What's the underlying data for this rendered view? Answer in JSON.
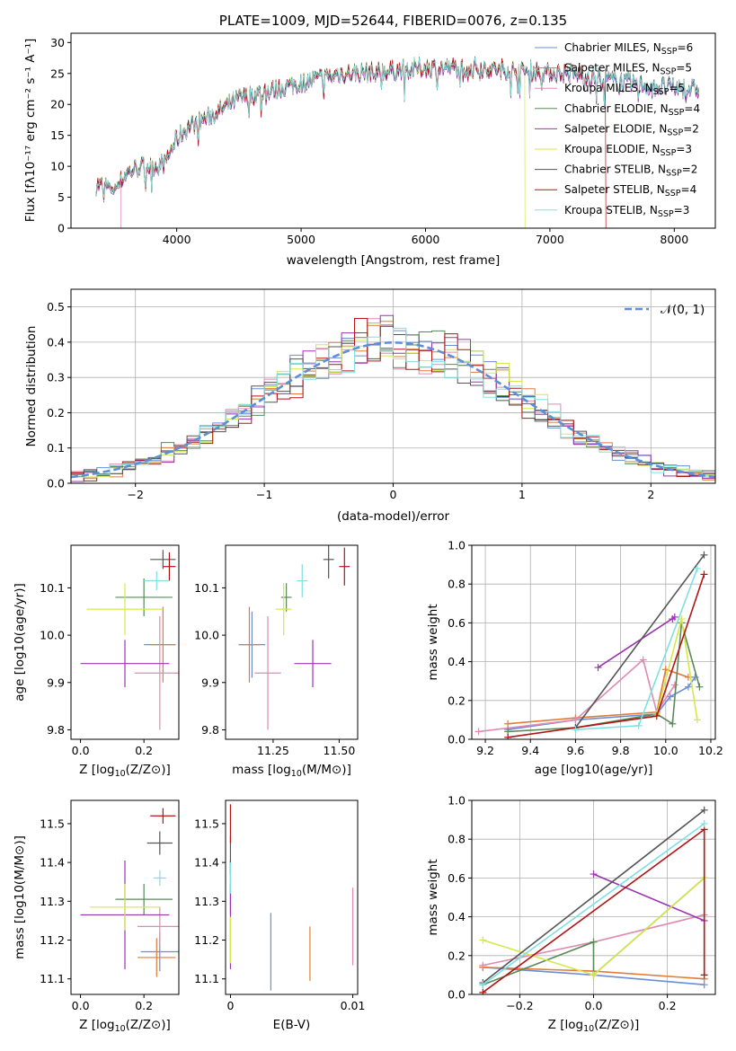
{
  "colors": [
    "#6a8dd6",
    "#e07b39",
    "#e08ab0",
    "#5a8a5a",
    "#9b34b0",
    "#d5e84a",
    "#555555",
    "#b21414",
    "#7fe0e0"
  ],
  "chart_data": [
    {
      "id": "spectrum",
      "type": "line",
      "title": "PLATE=1009, MJD=52644, FIBERID=0076, z=0.135",
      "xlabel": "wavelength [Angstrom, rest frame]",
      "ylabel": "Flux [fλ10⁻¹⁷ erg cm⁻² s⁻¹ A⁻¹]",
      "xlim": [
        3150,
        8330
      ],
      "ylim": [
        0,
        31.5
      ],
      "xticks": [
        4000,
        5000,
        6000,
        7000,
        8000
      ],
      "yticks": [
        0,
        5,
        10,
        15,
        20,
        25,
        30
      ],
      "grid": false,
      "legend": "top-right",
      "trend_x": [
        3400,
        3500,
        3600,
        3700,
        3800,
        3900,
        4000,
        4100,
        4300,
        4500,
        4700,
        5000,
        5300,
        5600,
        6000,
        6400,
        6800,
        7200,
        7500,
        7800,
        8200
      ],
      "trend_y": [
        7.0,
        6.5,
        9.0,
        10.0,
        10.0,
        10.5,
        14.5,
        16.5,
        18.5,
        21.0,
        22.0,
        23.5,
        25.0,
        25.3,
        26.0,
        26.0,
        25.5,
        25.0,
        24.0,
        23.0,
        22.5
      ],
      "series": [
        {
          "name": "Chabrier MILES, N_SSP=6",
          "label_main": "Chabrier MILES, N",
          "label_sub": "SSP",
          "label_tail": "=6"
        },
        {
          "name": "Salpeter MILES, N_SSP=5",
          "label_main": "Salpeter MILES, N",
          "label_sub": "SSP",
          "label_tail": "=5"
        },
        {
          "name": "Kroupa MILES, N_SSP=5",
          "label_main": "Kroupa MILES, N",
          "label_sub": "SSP",
          "label_tail": "=5"
        },
        {
          "name": "Chabrier ELODIE, N_SSP=4",
          "label_main": "Chabrier ELODIE, N",
          "label_sub": "SSP",
          "label_tail": "=4"
        },
        {
          "name": "Salpeter ELODIE, N_SSP=2",
          "label_main": "Salpeter ELODIE, N",
          "label_sub": "SSP",
          "label_tail": "=2"
        },
        {
          "name": "Kroupa ELODIE, N_SSP=3",
          "label_main": "Kroupa ELODIE, N",
          "label_sub": "SSP",
          "label_tail": "=3"
        },
        {
          "name": "Chabrier STELIB, N_SSP=2",
          "label_main": "Chabrier STELIB, N",
          "label_sub": "SSP",
          "label_tail": "=2"
        },
        {
          "name": "Salpeter STELIB, N_SSP=4",
          "label_main": "Salpeter STELIB, N",
          "label_sub": "SSP",
          "label_tail": "=4"
        },
        {
          "name": "Kroupa STELIB, N_SSP=3",
          "label_main": "Kroupa STELIB, N",
          "label_sub": "SSP",
          "label_tail": "=3"
        }
      ],
      "series_ranges": [
        [
          3350,
          8200
        ],
        [
          3350,
          8200
        ],
        [
          3550,
          8200
        ],
        [
          3350,
          8200
        ],
        [
          3350,
          8200
        ],
        [
          3350,
          6800
        ],
        [
          3350,
          8200
        ],
        [
          3350,
          7450
        ],
        [
          3350,
          8200
        ]
      ]
    },
    {
      "id": "residuals",
      "type": "histogram",
      "xlabel": "(data-model)/error",
      "ylabel": "Normed distribution",
      "xlim": [
        -2.5,
        2.5
      ],
      "ylim": [
        0,
        0.55
      ],
      "xticks": [
        -2,
        -1,
        0,
        1,
        2
      ],
      "yticks": [
        0.0,
        0.1,
        0.2,
        0.3,
        0.4,
        0.5
      ],
      "grid": true,
      "legend": "top-right",
      "reference": {
        "name": "𝒩(0, 1)"
      },
      "bin_width": 0.1
    },
    {
      "id": "age_vs_Z",
      "type": "errorbar",
      "xlabel_main": "Z [log",
      "xlabel_sub": "10",
      "xlabel_tail": "(Z/Z⊙)]",
      "ylabel": "age  [log10(age/yr)]",
      "xlim": [
        -0.03,
        0.31
      ],
      "ylim": [
        9.78,
        10.19
      ],
      "xticks": [
        0.0,
        0.2
      ],
      "yticks": [
        9.8,
        9.9,
        10.0,
        10.1
      ],
      "points": [
        {
          "x": 0.25,
          "xerr": 0.05,
          "y": 9.98,
          "yerr": 0.0
        },
        {
          "x": 0.26,
          "xerr": 0.04,
          "y": 9.98,
          "yerr": 0.08
        },
        {
          "x": 0.25,
          "xerr": 0.08,
          "y": 9.92,
          "yerr": 0.12
        },
        {
          "x": 0.2,
          "xerr": 0.09,
          "y": 10.08,
          "yerr": 0.04
        },
        {
          "x": 0.14,
          "xerr": 0.14,
          "y": 9.94,
          "yerr": 0.05
        },
        {
          "x": 0.14,
          "xerr": 0.12,
          "y": 10.055,
          "yerr": 0.055
        },
        {
          "x": 0.26,
          "xerr": 0.04,
          "y": 10.16,
          "yerr": 0.02
        },
        {
          "x": 0.28,
          "xerr": 0.02,
          "y": 10.145,
          "yerr": 0.03
        },
        {
          "x": 0.24,
          "xerr": 0.04,
          "y": 10.115,
          "yerr": 0.02
        }
      ]
    },
    {
      "id": "age_vs_mass",
      "type": "errorbar",
      "xlabel_main": "mass [log",
      "xlabel_sub": "10",
      "xlabel_tail": "(M/M⊙)]",
      "ylabel": "",
      "xlim": [
        11.07,
        11.57
      ],
      "ylim": [
        9.78,
        10.19
      ],
      "xticks": [
        11.25,
        11.5
      ],
      "yticks": [
        9.8,
        9.9,
        10.0,
        10.1
      ],
      "points": [
        {
          "x": 11.17,
          "xerr": 0.05,
          "y": 9.98,
          "yerr": 0.07
        },
        {
          "x": 11.16,
          "xerr": 0.04,
          "y": 9.98,
          "yerr": 0.08
        },
        {
          "x": 11.23,
          "xerr": 0.05,
          "y": 9.92,
          "yerr": 0.12
        },
        {
          "x": 11.3,
          "xerr": 0.02,
          "y": 10.08,
          "yerr": 0.03
        },
        {
          "x": 11.4,
          "xerr": 0.07,
          "y": 9.94,
          "yerr": 0.05
        },
        {
          "x": 11.29,
          "xerr": 0.03,
          "y": 10.055,
          "yerr": 0.055
        },
        {
          "x": 11.46,
          "xerr": 0.02,
          "y": 10.16,
          "yerr": 0.04
        },
        {
          "x": 11.52,
          "xerr": 0.02,
          "y": 10.145,
          "yerr": 0.04
        },
        {
          "x": 11.36,
          "xerr": 0.02,
          "y": 10.115,
          "yerr": 0.035
        }
      ]
    },
    {
      "id": "weight_vs_age",
      "type": "line",
      "xlabel": "age  [log10(age/yr)]",
      "ylabel": "mass weight",
      "xlim": [
        9.14,
        10.22
      ],
      "ylim": [
        0,
        1.0
      ],
      "xticks": [
        9.2,
        9.4,
        9.6,
        9.8,
        10.0,
        10.2
      ],
      "yticks": [
        0.0,
        0.2,
        0.4,
        0.6,
        0.8,
        1.0
      ],
      "grid": true,
      "series": [
        {
          "x": [
            9.3,
            9.6,
            9.96,
            10.02,
            10.1,
            10.13
          ],
          "y": [
            0.05,
            0.1,
            0.13,
            0.22,
            0.27,
            0.32
          ]
        },
        {
          "x": [
            9.3,
            9.6,
            9.96,
            10.0,
            10.1
          ],
          "y": [
            0.08,
            0.11,
            0.14,
            0.36,
            0.32
          ]
        },
        {
          "x": [
            9.17,
            9.6,
            9.9,
            9.96,
            10.04
          ],
          "y": [
            0.04,
            0.1,
            0.41,
            0.14,
            0.28
          ]
        },
        {
          "x": [
            9.3,
            9.6,
            9.96,
            10.03,
            10.07,
            10.15
          ],
          "y": [
            0.04,
            0.06,
            0.13,
            0.08,
            0.6,
            0.27
          ]
        },
        {
          "x": [
            9.7,
            10.04,
            10.03
          ],
          "y": [
            0.37,
            0.63,
            0.62
          ]
        },
        {
          "x": [
            9.96,
            10.07,
            10.14
          ],
          "y": [
            0.13,
            0.62,
            0.1
          ]
        },
        {
          "x": [
            9.6,
            10.17
          ],
          "y": [
            0.06,
            0.95
          ]
        },
        {
          "x": [
            9.3,
            9.96,
            10.17
          ],
          "y": [
            0.01,
            0.12,
            0.85
          ]
        },
        {
          "x": [
            9.6,
            9.88,
            10.14
          ],
          "y": [
            0.05,
            0.07,
            0.88
          ]
        }
      ]
    },
    {
      "id": "mass_vs_Z",
      "type": "errorbar",
      "xlabel_main": "Z [log",
      "xlabel_sub": "10",
      "xlabel_tail": "(Z/Z⊙)]",
      "ylabel": "mass [log10(M/M⊙)]",
      "xlim": [
        -0.03,
        0.31
      ],
      "ylim": [
        11.06,
        11.56
      ],
      "xticks": [
        0.0,
        0.2
      ],
      "yticks": [
        11.1,
        11.2,
        11.3,
        11.4,
        11.5
      ],
      "points": [
        {
          "x": 0.25,
          "xerr": 0.06,
          "y": 11.17,
          "yerr": 0.05
        },
        {
          "x": 0.24,
          "xerr": 0.06,
          "y": 11.155,
          "yerr": 0.05
        },
        {
          "x": 0.25,
          "xerr": 0.07,
          "y": 11.235,
          "yerr": 0.05
        },
        {
          "x": 0.2,
          "xerr": 0.09,
          "y": 11.305,
          "yerr": 0.04
        },
        {
          "x": 0.14,
          "xerr": 0.14,
          "y": 11.265,
          "yerr": 0.14
        },
        {
          "x": 0.14,
          "xerr": 0.11,
          "y": 11.285,
          "yerr": 0.06
        },
        {
          "x": 0.25,
          "xerr": 0.04,
          "y": 11.45,
          "yerr": 0.03
        },
        {
          "x": 0.26,
          "xerr": 0.04,
          "y": 11.52,
          "yerr": 0.02
        },
        {
          "x": 0.25,
          "xerr": 0.02,
          "y": 11.36,
          "yerr": 0.02
        }
      ]
    },
    {
      "id": "mass_vs_EBV",
      "type": "errorbar",
      "xlabel": "E(B-V)",
      "ylabel": "",
      "xlim": [
        -0.0004,
        0.0104
      ],
      "ylim": [
        11.06,
        11.56
      ],
      "xticks": [
        0.0,
        0.01
      ],
      "yticks": [
        11.1,
        11.2,
        11.3,
        11.4,
        11.5
      ],
      "points": [
        {
          "x": 0.0033,
          "xerr": 0.0,
          "y": 11.17,
          "yerr": 0.1
        },
        {
          "x": 0.0065,
          "xerr": 0.0,
          "y": 11.165,
          "yerr": 0.07
        },
        {
          "x": 0.01,
          "xerr": 0.0,
          "y": 11.235,
          "yerr": 0.1
        },
        {
          "x": 0.0,
          "xerr": 0.0,
          "y": 11.305,
          "yerr": 0.04
        },
        {
          "x": 0.0,
          "xerr": 0.0,
          "y": 11.265,
          "yerr": 0.14
        },
        {
          "x": 0.0,
          "xerr": 0.0,
          "y": 11.2,
          "yerr": 0.06
        },
        {
          "x": 0.0,
          "xerr": 0.0,
          "y": 11.42,
          "yerr": 0.05
        },
        {
          "x": 0.0,
          "xerr": 0.0,
          "y": 11.5,
          "yerr": 0.05
        },
        {
          "x": 0.0,
          "xerr": 0.0,
          "y": 11.36,
          "yerr": 0.04
        }
      ]
    },
    {
      "id": "weight_vs_Z",
      "type": "line",
      "xlabel_main": "Z [log",
      "xlabel_sub": "10",
      "xlabel_tail": "(Z/Z⊙)]",
      "ylabel": "mass weight",
      "xlim": [
        -0.33,
        0.33
      ],
      "ylim": [
        0,
        1.0
      ],
      "xticks": [
        -0.2,
        0.0,
        0.2
      ],
      "yticks": [
        0.0,
        0.2,
        0.4,
        0.6,
        0.8,
        1.0
      ],
      "grid": true,
      "series": [
        {
          "x": [
            -0.3,
            0.0,
            0.3
          ],
          "y": [
            0.14,
            0.1,
            0.05
          ]
        },
        {
          "x": [
            -0.3,
            0.0,
            0.3
          ],
          "y": [
            0.14,
            0.12,
            0.08
          ]
        },
        {
          "x": [
            -0.3,
            0.0,
            0.3
          ],
          "y": [
            0.15,
            0.27,
            0.41
          ]
        },
        {
          "x": [
            -0.3,
            0.0,
            0.0,
            0.3
          ],
          "y": [
            0.05,
            0.27,
            0.1,
            0.6
          ]
        },
        {
          "x": [
            0.0,
            0.3
          ],
          "y": [
            0.62,
            0.38
          ]
        },
        {
          "x": [
            -0.3,
            0.0,
            0.3
          ],
          "y": [
            0.28,
            0.1,
            0.6
          ]
        },
        {
          "x": [
            -0.3,
            0.3
          ],
          "y": [
            0.06,
            0.95
          ]
        },
        {
          "x": [
            -0.3,
            0.3,
            0.3
          ],
          "y": [
            0.01,
            0.85,
            0.1
          ]
        },
        {
          "x": [
            -0.3,
            0.3
          ],
          "y": [
            0.05,
            0.88
          ]
        }
      ]
    }
  ]
}
